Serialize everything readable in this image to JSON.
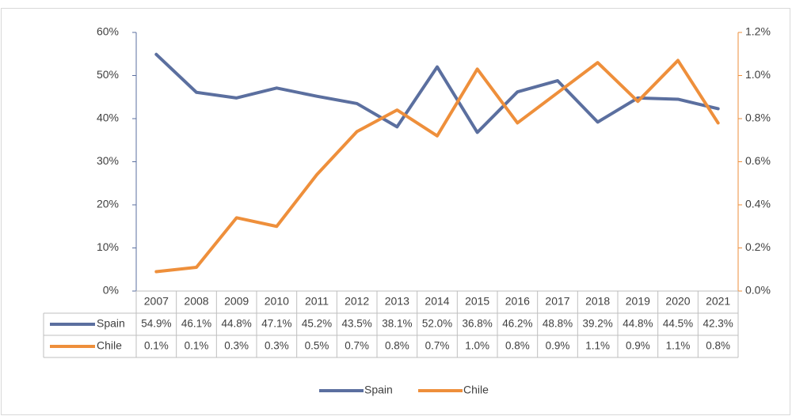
{
  "chart_data": {
    "type": "line",
    "categories": [
      "2007",
      "2008",
      "2009",
      "2010",
      "2011",
      "2012",
      "2013",
      "2014",
      "2015",
      "2016",
      "2017",
      "2018",
      "2019",
      "2020",
      "2021"
    ],
    "series": [
      {
        "name": "Spain",
        "color": "#5b6f9f",
        "axis": "y",
        "values": [
          54.9,
          46.1,
          44.8,
          47.1,
          45.2,
          43.5,
          38.1,
          52.0,
          36.8,
          46.2,
          48.8,
          39.2,
          44.8,
          44.5,
          42.3
        ],
        "value_labels": [
          "54.9%",
          "46.1%",
          "44.8%",
          "47.1%",
          "45.2%",
          "43.5%",
          "38.1%",
          "52.0%",
          "36.8%",
          "46.2%",
          "48.8%",
          "39.2%",
          "44.8%",
          "44.5%",
          "42.3%"
        ]
      },
      {
        "name": "Chile",
        "color": "#ee8f3b",
        "axis": "y2",
        "values": [
          0.09,
          0.11,
          0.34,
          0.3,
          0.54,
          0.74,
          0.84,
          0.72,
          1.03,
          0.78,
          0.92,
          1.06,
          0.88,
          1.07,
          0.78
        ],
        "value_labels": [
          "0.1%",
          "0.1%",
          "0.3%",
          "0.3%",
          "0.5%",
          "0.7%",
          "0.8%",
          "0.7%",
          "1.0%",
          "0.8%",
          "0.9%",
          "1.1%",
          "0.9%",
          "1.1%",
          "0.8%"
        ]
      }
    ],
    "ylim": [
      0,
      60
    ],
    "yticks": [
      {
        "value": 0,
        "label": "0%"
      },
      {
        "value": 10,
        "label": "10%"
      },
      {
        "value": 20,
        "label": "20%"
      },
      {
        "value": 30,
        "label": "30%"
      },
      {
        "value": 40,
        "label": "40%"
      },
      {
        "value": 50,
        "label": "50%"
      },
      {
        "value": 60,
        "label": "60%"
      }
    ],
    "y2lim": [
      0,
      1.2
    ],
    "y2ticks": [
      {
        "value": 0,
        "label": "0.0%"
      },
      {
        "value": 0.2,
        "label": "0.2%"
      },
      {
        "value": 0.4,
        "label": "0.4%"
      },
      {
        "value": 0.6,
        "label": "0.6%"
      },
      {
        "value": 0.8,
        "label": "0.8%"
      },
      {
        "value": 1.0,
        "label": "1.0%"
      },
      {
        "value": 1.2,
        "label": "1.2%"
      }
    ],
    "grid": false,
    "legend": "bottom",
    "data_table": true
  }
}
